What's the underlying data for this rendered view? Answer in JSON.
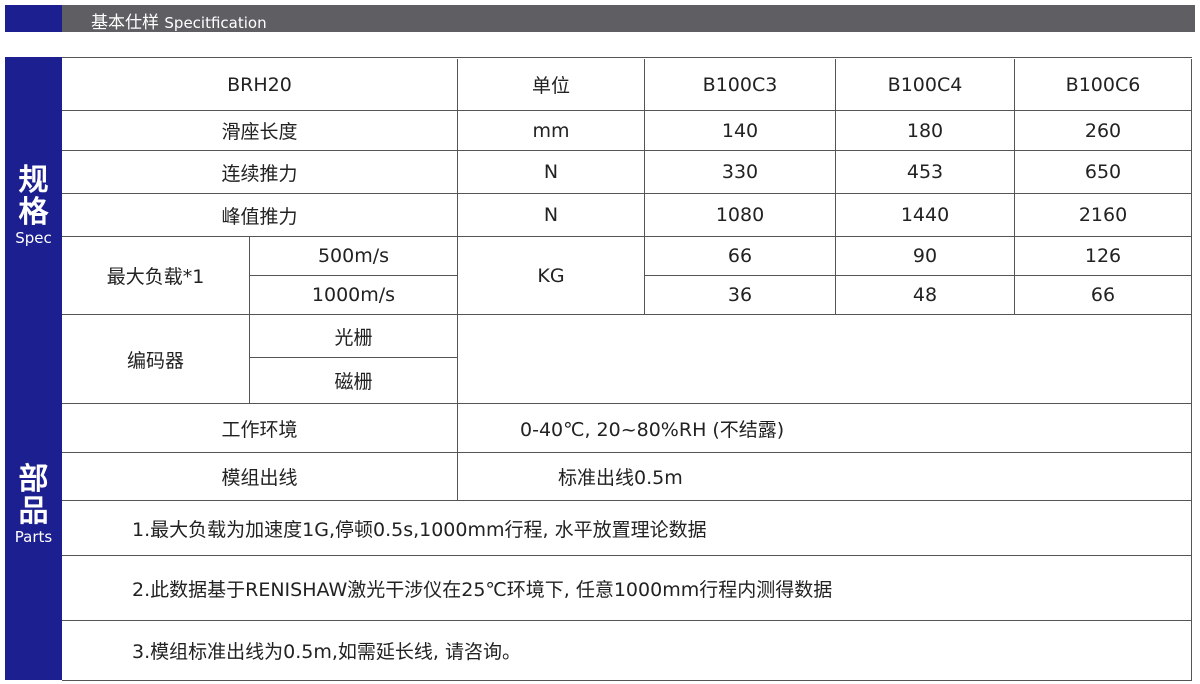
{
  "header": {
    "title_cn": "基本仕样",
    "title_en": "Specitfication"
  },
  "sections": {
    "spec": {
      "cn": "规格",
      "en": "Spec"
    },
    "parts": {
      "cn": "部品",
      "en": "Parts"
    }
  },
  "table": {
    "model": "BRH20",
    "unit_header": "单位",
    "variants": [
      "B100C3",
      "B100C4",
      "B100C6"
    ],
    "rows": [
      {
        "label": "滑座长度",
        "unit": "mm",
        "values": [
          "140",
          "180",
          "260"
        ]
      },
      {
        "label": "连续推力",
        "unit": "N",
        "values": [
          "330",
          "453",
          "650"
        ]
      },
      {
        "label": "峰值推力",
        "unit": "N",
        "values": [
          "1080",
          "1440",
          "2160"
        ]
      }
    ],
    "max_load": {
      "label": "最大负载*1",
      "unit": "KG",
      "sub": [
        {
          "label": "500m/s",
          "values": [
            "66",
            "90",
            "126"
          ]
        },
        {
          "label": "1000m/s",
          "values": [
            "36",
            "48",
            "66"
          ]
        }
      ]
    },
    "encoder": {
      "label": "编码器",
      "options": [
        "光栅",
        "磁栅"
      ]
    },
    "environment": {
      "label": "工作环境",
      "value": "0-40℃, 20~80%RH (不结露)"
    },
    "cable": {
      "label": "模组出线",
      "value": "标准出线0.5m"
    },
    "notes": [
      "1.最大负载为加速度1G,停顿0.5s,1000mm行程, 水平放置理论数据",
      "2.此数据基于RENISHAW激光干涉仪在25℃环境下, 任意1000mm行程内测得数据",
      "3.模组标准出线为0.5m,如需延长线, 请咨询。"
    ]
  }
}
